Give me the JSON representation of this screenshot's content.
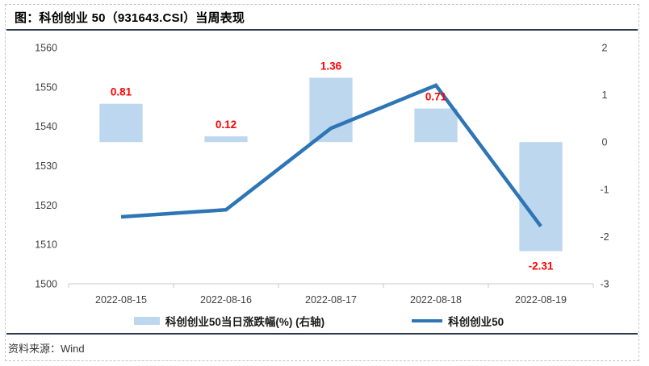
{
  "header": {
    "title": "图：科创创业 50（931643.CSI）当周表现"
  },
  "footer": {
    "source": "资料来源：Wind"
  },
  "colors": {
    "bar_fill": "#BDD7EE",
    "line_stroke": "#2E75B6",
    "value_label": "#FF0000",
    "axis_text": "#404040",
    "axis_line": "#c9c9c9",
    "rule": "#2e3b4e"
  },
  "chart_data": {
    "type": "combo-bar-line",
    "categories": [
      "2022-08-15",
      "2022-08-16",
      "2022-08-17",
      "2022-08-18",
      "2022-08-19"
    ],
    "series": [
      {
        "name": "科创创业50当日涨跌幅(%) (右轴)",
        "type": "bar",
        "axis": "right",
        "values": [
          0.81,
          0.12,
          1.36,
          0.71,
          -2.31
        ],
        "labels": [
          "0.81",
          "0.12",
          "1.36",
          "0.71",
          "-2.31"
        ],
        "color": "#BDD7EE",
        "label_color": "#FF0000"
      },
      {
        "name": "科创创业50",
        "type": "line",
        "axis": "left",
        "values": [
          1517.0,
          1518.8,
          1539.5,
          1550.4,
          1514.6
        ],
        "color": "#2E75B6"
      }
    ],
    "left_axis": {
      "min": 1500,
      "max": 1560,
      "step": 10
    },
    "right_axis": {
      "min": -3,
      "max": 2,
      "step": 1
    },
    "grid": false,
    "legend_position": "bottom"
  }
}
